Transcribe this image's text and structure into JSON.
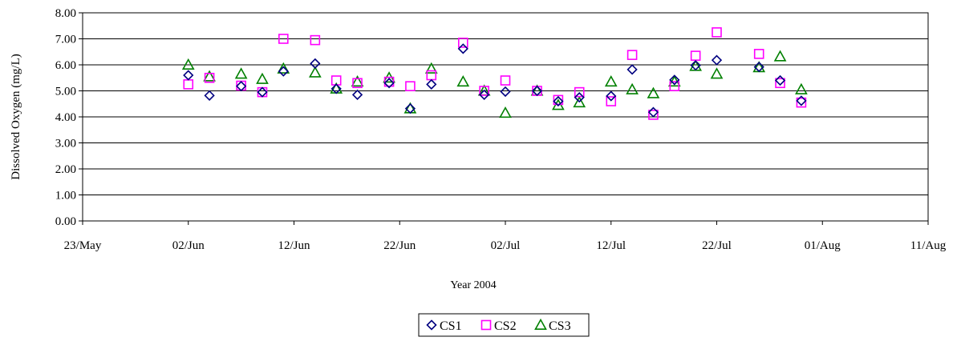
{
  "chart_data": {
    "type": "scatter",
    "title": "",
    "xlabel": "Year 2004",
    "ylabel": "Dissolved Oxygen (mg/L)",
    "x_type": "date",
    "xlim": [
      "2004-05-23",
      "2004-08-11"
    ],
    "ylim": [
      0,
      8
    ],
    "y_ticks": [
      "0.00",
      "1.00",
      "2.00",
      "3.00",
      "4.00",
      "5.00",
      "6.00",
      "7.00",
      "8.00"
    ],
    "x_ticks": [
      {
        "date": "2004-05-23",
        "label": "23/May"
      },
      {
        "date": "2004-06-02",
        "label": "02/Jun"
      },
      {
        "date": "2004-06-12",
        "label": "12/Jun"
      },
      {
        "date": "2004-06-22",
        "label": "22/Jun"
      },
      {
        "date": "2004-07-02",
        "label": "02/Jul"
      },
      {
        "date": "2004-07-12",
        "label": "12/Jul"
      },
      {
        "date": "2004-07-22",
        "label": "22/Jul"
      },
      {
        "date": "2004-08-01",
        "label": "01/Aug"
      },
      {
        "date": "2004-08-11",
        "label": "11/Aug"
      }
    ],
    "grid": "horizontal",
    "legend_position": "bottom-center",
    "series": [
      {
        "name": "CS1",
        "marker": "diamond",
        "color": "#000080",
        "points": [
          [
            "2004-06-02",
            5.6
          ],
          [
            "2004-06-04",
            4.82
          ],
          [
            "2004-06-07",
            5.18
          ],
          [
            "2004-06-09",
            4.95
          ],
          [
            "2004-06-11",
            5.75
          ],
          [
            "2004-06-14",
            6.05
          ],
          [
            "2004-06-16",
            5.08
          ],
          [
            "2004-06-18",
            4.85
          ],
          [
            "2004-06-21",
            5.3
          ],
          [
            "2004-06-23",
            4.32
          ],
          [
            "2004-06-25",
            5.25
          ],
          [
            "2004-06-28",
            6.62
          ],
          [
            "2004-06-30",
            4.85
          ],
          [
            "2004-07-02",
            4.97
          ],
          [
            "2004-07-05",
            5.0
          ],
          [
            "2004-07-07",
            4.6
          ],
          [
            "2004-07-09",
            4.75
          ],
          [
            "2004-07-12",
            4.8
          ],
          [
            "2004-07-14",
            5.82
          ],
          [
            "2004-07-16",
            4.18
          ],
          [
            "2004-07-18",
            5.42
          ],
          [
            "2004-07-20",
            5.98
          ],
          [
            "2004-07-22",
            6.18
          ],
          [
            "2004-07-26",
            5.92
          ],
          [
            "2004-07-28",
            5.4
          ],
          [
            "2004-07-30",
            4.62
          ]
        ]
      },
      {
        "name": "CS2",
        "marker": "square",
        "color": "#FF00FF",
        "points": [
          [
            "2004-06-02",
            5.25
          ],
          [
            "2004-06-04",
            5.5
          ],
          [
            "2004-06-07",
            5.2
          ],
          [
            "2004-06-09",
            4.95
          ],
          [
            "2004-06-11",
            7.0
          ],
          [
            "2004-06-14",
            6.95
          ],
          [
            "2004-06-16",
            5.4
          ],
          [
            "2004-06-18",
            5.3
          ],
          [
            "2004-06-21",
            5.35
          ],
          [
            "2004-06-23",
            5.18
          ],
          [
            "2004-06-25",
            5.6
          ],
          [
            "2004-06-28",
            6.85
          ],
          [
            "2004-06-30",
            5.0
          ],
          [
            "2004-07-02",
            5.4
          ],
          [
            "2004-07-05",
            5.0
          ],
          [
            "2004-07-07",
            4.65
          ],
          [
            "2004-07-09",
            4.95
          ],
          [
            "2004-07-12",
            4.6
          ],
          [
            "2004-07-14",
            6.38
          ],
          [
            "2004-07-16",
            4.08
          ],
          [
            "2004-07-18",
            5.18
          ],
          [
            "2004-07-20",
            6.35
          ],
          [
            "2004-07-22",
            7.25
          ],
          [
            "2004-07-26",
            6.42
          ],
          [
            "2004-07-28",
            5.3
          ],
          [
            "2004-07-30",
            4.55
          ]
        ]
      },
      {
        "name": "CS3",
        "marker": "triangle",
        "color": "#008000",
        "points": [
          [
            "2004-06-02",
            6.0
          ],
          [
            "2004-06-04",
            5.55
          ],
          [
            "2004-06-07",
            5.65
          ],
          [
            "2004-06-09",
            5.45
          ],
          [
            "2004-06-11",
            5.85
          ],
          [
            "2004-06-14",
            5.7
          ],
          [
            "2004-06-16",
            5.08
          ],
          [
            "2004-06-18",
            5.35
          ],
          [
            "2004-06-21",
            5.5
          ],
          [
            "2004-06-23",
            4.32
          ],
          [
            "2004-06-25",
            5.85
          ],
          [
            "2004-06-28",
            5.35
          ],
          [
            "2004-06-30",
            5.0
          ],
          [
            "2004-07-02",
            4.15
          ],
          [
            "2004-07-05",
            5.0
          ],
          [
            "2004-07-07",
            4.45
          ],
          [
            "2004-07-09",
            4.55
          ],
          [
            "2004-07-12",
            5.35
          ],
          [
            "2004-07-14",
            5.05
          ],
          [
            "2004-07-16",
            4.9
          ],
          [
            "2004-07-18",
            5.35
          ],
          [
            "2004-07-20",
            5.95
          ],
          [
            "2004-07-22",
            5.65
          ],
          [
            "2004-07-26",
            5.9
          ],
          [
            "2004-07-28",
            6.32
          ],
          [
            "2004-07-30",
            5.05
          ]
        ]
      }
    ]
  }
}
